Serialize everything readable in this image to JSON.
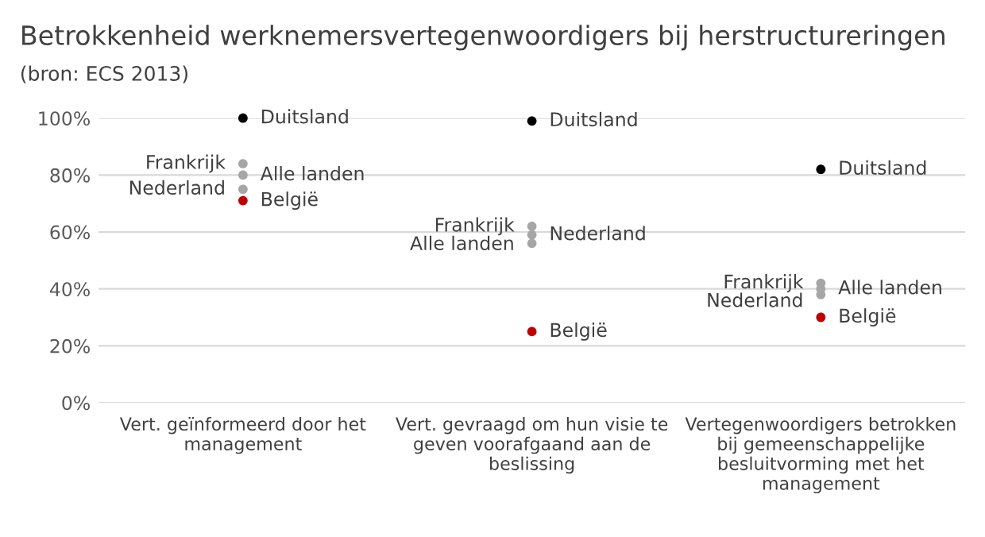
{
  "chart_data": {
    "type": "scatter",
    "title": "Betrokkenheid werknemersvertegenwoordigers bij herstructureringen",
    "annotations": [
      "(bron: ECS 2013)"
    ],
    "categories": [
      "Vert. geïnformeerd door het management",
      "Vert. gevraagd om hun visie te geven voorafgaand aan de beslissing",
      "Vertegenwoordigers betrokken bij gemeenschappelijke besluitvorming met het management"
    ],
    "series": [
      {
        "name": "Duitsland",
        "color": "#000000",
        "values": [
          100,
          99,
          82
        ]
      },
      {
        "name": "Frankrijk",
        "color": "#a6a6a6",
        "values": [
          84,
          62,
          42
        ]
      },
      {
        "name": "Alle landen",
        "color": "#a6a6a6",
        "values": [
          80,
          56,
          40
        ]
      },
      {
        "name": "Nederland",
        "color": "#a6a6a6",
        "values": [
          75,
          59,
          38
        ]
      },
      {
        "name": "België",
        "color": "#c00000",
        "values": [
          71,
          25,
          30
        ]
      }
    ],
    "ylim": [
      0,
      100
    ],
    "yticks": [
      {
        "value": 0,
        "label": "0%"
      },
      {
        "value": 20,
        "label": "20%"
      },
      {
        "value": 40,
        "label": "40%"
      },
      {
        "value": 60,
        "label": "60%"
      },
      {
        "value": 80,
        "label": "80%"
      },
      {
        "value": 100,
        "label": "100%"
      }
    ],
    "grid": "y",
    "legend": false,
    "marker": "circle"
  }
}
